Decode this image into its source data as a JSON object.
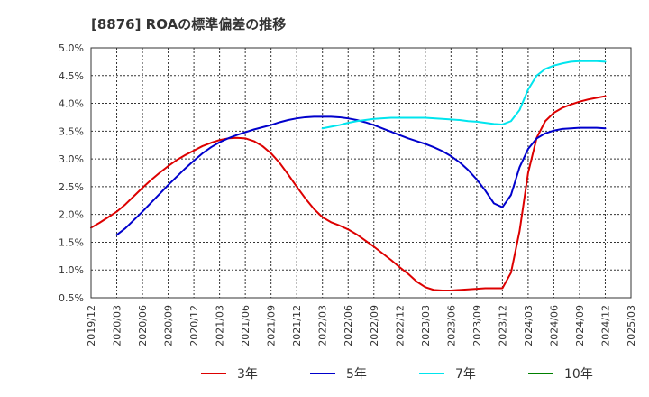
{
  "chart_data": {
    "type": "line",
    "title": "[8876]  ROAの標準偏差の推移",
    "xlabel": "",
    "ylabel": "",
    "ylim": [
      0.5,
      5.0
    ],
    "y_ticks": [
      "0.5%",
      "1.0%",
      "1.5%",
      "2.0%",
      "2.5%",
      "3.0%",
      "3.5%",
      "4.0%",
      "4.5%",
      "5.0%"
    ],
    "x_ticks": [
      "2019/12",
      "2020/03",
      "2020/06",
      "2020/09",
      "2020/12",
      "2021/03",
      "2021/06",
      "2021/09",
      "2021/12",
      "2022/03",
      "2022/06",
      "2022/09",
      "2022/12",
      "2023/03",
      "2023/06",
      "2023/09",
      "2023/12",
      "2024/03",
      "2024/06",
      "2024/09",
      "2024/12",
      "2025/03"
    ],
    "grid": true,
    "legend_position": "bottom",
    "series": [
      {
        "name": "3年",
        "color": "#dd0000",
        "points": [
          [
            "2019/12",
            1.76
          ],
          [
            "2020/01",
            1.85
          ],
          [
            "2020/02",
            1.95
          ],
          [
            "2020/03",
            2.05
          ],
          [
            "2020/04",
            2.18
          ],
          [
            "2020/05",
            2.33
          ],
          [
            "2020/06",
            2.48
          ],
          [
            "2020/07",
            2.62
          ],
          [
            "2020/08",
            2.75
          ],
          [
            "2020/09",
            2.87
          ],
          [
            "2020/10",
            2.98
          ],
          [
            "2020/11",
            3.07
          ],
          [
            "2020/12",
            3.15
          ],
          [
            "2021/01",
            3.23
          ],
          [
            "2021/02",
            3.29
          ],
          [
            "2021/03",
            3.34
          ],
          [
            "2021/04",
            3.37
          ],
          [
            "2021/05",
            3.38
          ],
          [
            "2021/06",
            3.37
          ],
          [
            "2021/07",
            3.32
          ],
          [
            "2021/08",
            3.23
          ],
          [
            "2021/09",
            3.1
          ],
          [
            "2021/10",
            2.93
          ],
          [
            "2021/11",
            2.72
          ],
          [
            "2021/12",
            2.5
          ],
          [
            "2022/01",
            2.29
          ],
          [
            "2022/02",
            2.1
          ],
          [
            "2022/03",
            1.95
          ],
          [
            "2022/04",
            1.86
          ],
          [
            "2022/05",
            1.8
          ],
          [
            "2022/06",
            1.73
          ],
          [
            "2022/07",
            1.64
          ],
          [
            "2022/08",
            1.53
          ],
          [
            "2022/09",
            1.42
          ],
          [
            "2022/10",
            1.3
          ],
          [
            "2022/11",
            1.18
          ],
          [
            "2022/12",
            1.05
          ],
          [
            "2023/01",
            0.93
          ],
          [
            "2023/02",
            0.79
          ],
          [
            "2023/03",
            0.69
          ],
          [
            "2023/04",
            0.64
          ],
          [
            "2023/05",
            0.63
          ],
          [
            "2023/06",
            0.63
          ],
          [
            "2023/07",
            0.64
          ],
          [
            "2023/08",
            0.65
          ],
          [
            "2023/09",
            0.66
          ],
          [
            "2023/10",
            0.67
          ],
          [
            "2023/11",
            0.67
          ],
          [
            "2023/12",
            0.67
          ],
          [
            "2024/01",
            0.95
          ],
          [
            "2024/02",
            1.7
          ],
          [
            "2024/03",
            2.75
          ],
          [
            "2024/04",
            3.38
          ],
          [
            "2024/05",
            3.68
          ],
          [
            "2024/06",
            3.83
          ],
          [
            "2024/07",
            3.92
          ],
          [
            "2024/08",
            3.98
          ],
          [
            "2024/09",
            4.03
          ],
          [
            "2024/10",
            4.07
          ],
          [
            "2024/11",
            4.1
          ],
          [
            "2024/12",
            4.13
          ]
        ]
      },
      {
        "name": "5年",
        "color": "#0000cc",
        "points": [
          [
            "2020/03",
            1.63
          ],
          [
            "2020/04",
            1.75
          ],
          [
            "2020/05",
            1.9
          ],
          [
            "2020/06",
            2.05
          ],
          [
            "2020/07",
            2.21
          ],
          [
            "2020/08",
            2.37
          ],
          [
            "2020/09",
            2.53
          ],
          [
            "2020/10",
            2.68
          ],
          [
            "2020/11",
            2.83
          ],
          [
            "2020/12",
            2.97
          ],
          [
            "2021/01",
            3.1
          ],
          [
            "2021/02",
            3.21
          ],
          [
            "2021/03",
            3.3
          ],
          [
            "2021/04",
            3.37
          ],
          [
            "2021/05",
            3.43
          ],
          [
            "2021/06",
            3.48
          ],
          [
            "2021/07",
            3.53
          ],
          [
            "2021/08",
            3.57
          ],
          [
            "2021/09",
            3.61
          ],
          [
            "2021/10",
            3.66
          ],
          [
            "2021/11",
            3.7
          ],
          [
            "2021/12",
            3.73
          ],
          [
            "2022/01",
            3.75
          ],
          [
            "2022/02",
            3.76
          ],
          [
            "2022/03",
            3.76
          ],
          [
            "2022/04",
            3.76
          ],
          [
            "2022/05",
            3.75
          ],
          [
            "2022/06",
            3.73
          ],
          [
            "2022/07",
            3.7
          ],
          [
            "2022/08",
            3.66
          ],
          [
            "2022/09",
            3.61
          ],
          [
            "2022/10",
            3.55
          ],
          [
            "2022/11",
            3.49
          ],
          [
            "2022/12",
            3.43
          ],
          [
            "2023/01",
            3.37
          ],
          [
            "2023/02",
            3.32
          ],
          [
            "2023/03",
            3.27
          ],
          [
            "2023/04",
            3.21
          ],
          [
            "2023/05",
            3.14
          ],
          [
            "2023/06",
            3.05
          ],
          [
            "2023/07",
            2.94
          ],
          [
            "2023/08",
            2.8
          ],
          [
            "2023/09",
            2.63
          ],
          [
            "2023/10",
            2.43
          ],
          [
            "2023/11",
            2.2
          ],
          [
            "2023/12",
            2.13
          ],
          [
            "2024/01",
            2.35
          ],
          [
            "2024/02",
            2.85
          ],
          [
            "2024/03",
            3.18
          ],
          [
            "2024/04",
            3.37
          ],
          [
            "2024/05",
            3.46
          ],
          [
            "2024/06",
            3.51
          ],
          [
            "2024/07",
            3.54
          ],
          [
            "2024/08",
            3.55
          ],
          [
            "2024/09",
            3.56
          ],
          [
            "2024/10",
            3.56
          ],
          [
            "2024/11",
            3.56
          ],
          [
            "2024/12",
            3.55
          ]
        ]
      },
      {
        "name": "7年",
        "color": "#00e5ee",
        "points": [
          [
            "2022/03",
            3.55
          ],
          [
            "2022/04",
            3.58
          ],
          [
            "2022/05",
            3.61
          ],
          [
            "2022/06",
            3.65
          ],
          [
            "2022/07",
            3.68
          ],
          [
            "2022/08",
            3.7
          ],
          [
            "2022/09",
            3.72
          ],
          [
            "2022/10",
            3.73
          ],
          [
            "2022/11",
            3.74
          ],
          [
            "2022/12",
            3.74
          ],
          [
            "2023/01",
            3.74
          ],
          [
            "2023/02",
            3.74
          ],
          [
            "2023/03",
            3.74
          ],
          [
            "2023/04",
            3.73
          ],
          [
            "2023/05",
            3.72
          ],
          [
            "2023/06",
            3.71
          ],
          [
            "2023/07",
            3.7
          ],
          [
            "2023/08",
            3.68
          ],
          [
            "2023/09",
            3.67
          ],
          [
            "2023/10",
            3.65
          ],
          [
            "2023/11",
            3.63
          ],
          [
            "2023/12",
            3.62
          ],
          [
            "2024/01",
            3.68
          ],
          [
            "2024/02",
            3.88
          ],
          [
            "2024/03",
            4.25
          ],
          [
            "2024/04",
            4.5
          ],
          [
            "2024/05",
            4.62
          ],
          [
            "2024/06",
            4.68
          ],
          [
            "2024/07",
            4.72
          ],
          [
            "2024/08",
            4.75
          ],
          [
            "2024/09",
            4.76
          ],
          [
            "2024/10",
            4.76
          ],
          [
            "2024/11",
            4.76
          ],
          [
            "2024/12",
            4.75
          ]
        ]
      },
      {
        "name": "10年",
        "color": "#008000",
        "points": []
      }
    ]
  }
}
